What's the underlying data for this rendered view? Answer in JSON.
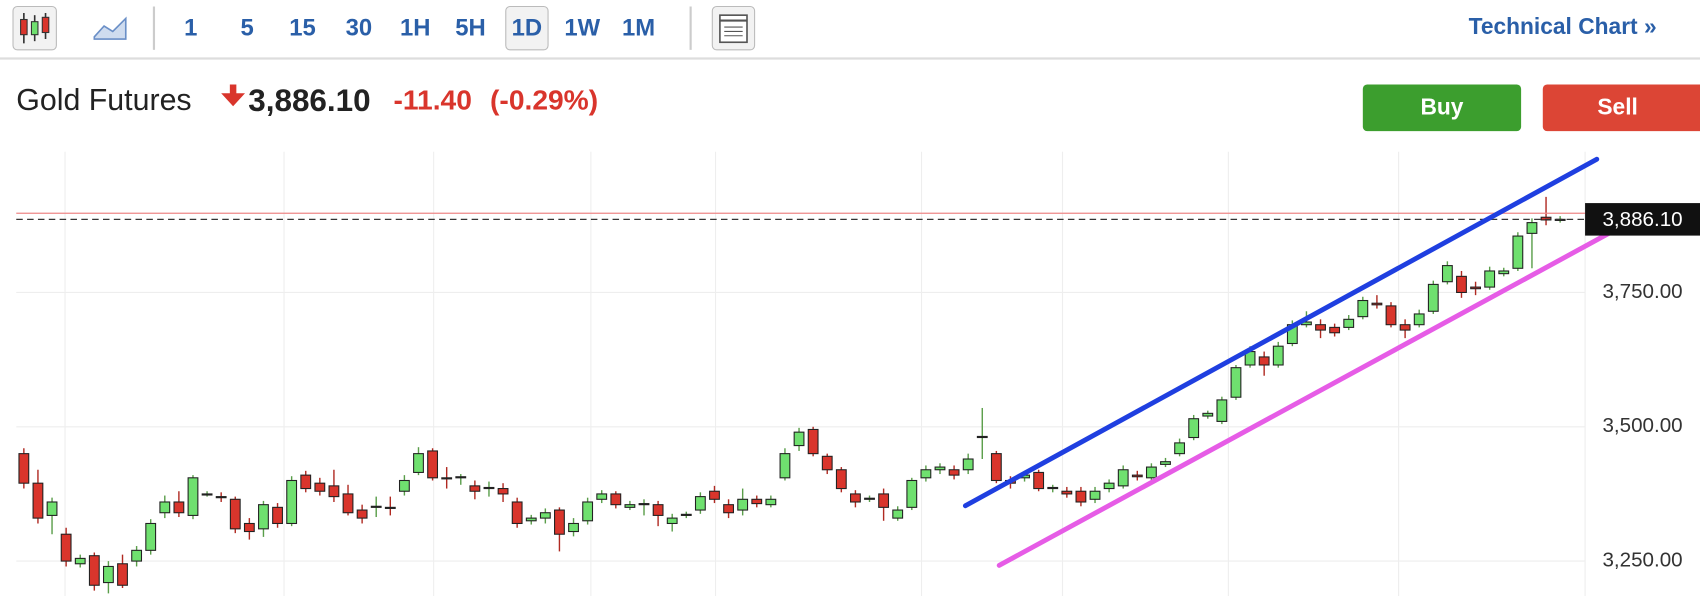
{
  "toolbar": {
    "intervals": [
      "1",
      "5",
      "15",
      "30",
      "1H",
      "5H",
      "1D",
      "1W",
      "1M"
    ],
    "active_index": 6,
    "technical_chart": "Technical Chart »"
  },
  "header": {
    "name": "Gold Futures",
    "price": "3,886.10",
    "change": "-11.40",
    "change_pct": "(-0.29%)"
  },
  "buttons": {
    "buy": "Buy",
    "sell": "Sell"
  },
  "chart_data": {
    "type": "candlestick",
    "open": [
      3450,
      3395,
      3335,
      3300,
      3245,
      3260,
      3210,
      3245,
      3250,
      3270,
      3340,
      3360,
      3335,
      3375,
      3370,
      3365,
      3320,
      3310,
      3350,
      3320,
      3410,
      3395,
      3390,
      3375,
      3345,
      3350,
      3350,
      3380,
      3415,
      3455,
      3405,
      3405,
      3390,
      3385,
      3385,
      3360,
      3325,
      3330,
      3345,
      3305,
      3325,
      3365,
      3375,
      3350,
      3355,
      3355,
      3320,
      3335,
      3345,
      3380,
      3355,
      3345,
      3365,
      3355,
      3405,
      3465,
      3495,
      3445,
      3420,
      3375,
      3365,
      3375,
      3330,
      3350,
      3405,
      3420,
      3420,
      3420,
      3480,
      3450,
      3400,
      3405,
      3415,
      3385,
      3380,
      3380,
      3365,
      3385,
      3390,
      3410,
      3405,
      3430,
      3450,
      3480,
      3520,
      3510,
      3555,
      3615,
      3630,
      3615,
      3655,
      3690,
      3690,
      3685,
      3685,
      3705,
      3730,
      3725,
      3690,
      3690,
      3715,
      3770,
      3780,
      3760,
      3760,
      3785,
      3795,
      3860,
      3890,
      3885
    ],
    "high": [
      3460,
      3420,
      3368,
      3312,
      3262,
      3266,
      3250,
      3262,
      3278,
      3328,
      3372,
      3380,
      3410,
      3380,
      3378,
      3370,
      3330,
      3362,
      3358,
      3408,
      3418,
      3405,
      3420,
      3392,
      3355,
      3370,
      3370,
      3410,
      3462,
      3460,
      3425,
      3412,
      3400,
      3398,
      3395,
      3368,
      3336,
      3348,
      3350,
      3330,
      3368,
      3382,
      3380,
      3362,
      3365,
      3362,
      3338,
      3342,
      3378,
      3390,
      3365,
      3385,
      3372,
      3372,
      3460,
      3498,
      3500,
      3450,
      3425,
      3382,
      3372,
      3385,
      3352,
      3405,
      3428,
      3432,
      3428,
      3450,
      3535,
      3455,
      3408,
      3418,
      3420,
      3392,
      3388,
      3388,
      3388,
      3402,
      3428,
      3418,
      3432,
      3442,
      3478,
      3522,
      3530,
      3556,
      3615,
      3650,
      3640,
      3658,
      3698,
      3715,
      3700,
      3692,
      3708,
      3742,
      3745,
      3732,
      3700,
      3718,
      3772,
      3808,
      3790,
      3770,
      3798,
      3796,
      3862,
      3888,
      3928,
      3892
    ],
    "low": [
      3385,
      3320,
      3300,
      3240,
      3238,
      3195,
      3190,
      3200,
      3240,
      3262,
      3330,
      3332,
      3328,
      3370,
      3360,
      3302,
      3290,
      3295,
      3312,
      3315,
      3378,
      3372,
      3360,
      3335,
      3320,
      3332,
      3335,
      3372,
      3410,
      3400,
      3385,
      3392,
      3365,
      3370,
      3360,
      3312,
      3318,
      3320,
      3268,
      3296,
      3318,
      3358,
      3348,
      3345,
      3335,
      3315,
      3305,
      3330,
      3338,
      3358,
      3330,
      3335,
      3350,
      3350,
      3400,
      3455,
      3445,
      3412,
      3378,
      3350,
      3360,
      3325,
      3325,
      3345,
      3398,
      3412,
      3402,
      3412,
      3440,
      3395,
      3385,
      3398,
      3380,
      3378,
      3368,
      3352,
      3358,
      3378,
      3385,
      3400,
      3398,
      3425,
      3445,
      3475,
      3515,
      3505,
      3550,
      3610,
      3595,
      3610,
      3650,
      3685,
      3665,
      3668,
      3680,
      3700,
      3720,
      3685,
      3665,
      3685,
      3710,
      3765,
      3740,
      3745,
      3755,
      3780,
      3790,
      3795,
      3875,
      3880
    ],
    "close": [
      3395,
      3330,
      3360,
      3250,
      3255,
      3205,
      3240,
      3205,
      3270,
      3320,
      3360,
      3340,
      3405,
      3375,
      3368,
      3310,
      3305,
      3355,
      3320,
      3400,
      3385,
      3380,
      3370,
      3340,
      3330,
      3352,
      3348,
      3400,
      3450,
      3405,
      3403,
      3407,
      3380,
      3387,
      3375,
      3320,
      3330,
      3340,
      3300,
      3320,
      3360,
      3375,
      3355,
      3355,
      3357,
      3335,
      3330,
      3337,
      3370,
      3365,
      3340,
      3365,
      3357,
      3365,
      3450,
      3490,
      3450,
      3420,
      3385,
      3360,
      3367,
      3350,
      3345,
      3400,
      3420,
      3425,
      3410,
      3440,
      3482,
      3400,
      3395,
      3410,
      3385,
      3387,
      3375,
      3360,
      3380,
      3395,
      3420,
      3407,
      3425,
      3435,
      3470,
      3515,
      3525,
      3550,
      3610,
      3640,
      3615,
      3650,
      3690,
      3695,
      3680,
      3675,
      3700,
      3735,
      3727,
      3690,
      3680,
      3710,
      3765,
      3800,
      3750,
      3757,
      3790,
      3790,
      3855,
      3880,
      3885,
      3886.1
    ],
    "up_color": "#6fe06f",
    "down_color": "#d9352c",
    "ylim": [
      3185,
      4012
    ],
    "yticks": [
      {
        "value": 3250,
        "label": "3,250.00"
      },
      {
        "value": 3500,
        "label": "3,500.00"
      },
      {
        "value": 3750,
        "label": "3,750.00"
      }
    ],
    "grid": true,
    "last_price": {
      "value": 3886.1,
      "label": "3,886.10"
    },
    "prev_close": 3897.5,
    "trendlines": [
      {
        "color": "#1f3fe0",
        "x": [
          66.8,
          111.6
        ],
        "y": [
          3353,
          3998
        ]
      },
      {
        "color": "#e65ce6",
        "x": [
          69.2,
          115.6
        ],
        "y": [
          3242,
          3905
        ]
      }
    ]
  }
}
